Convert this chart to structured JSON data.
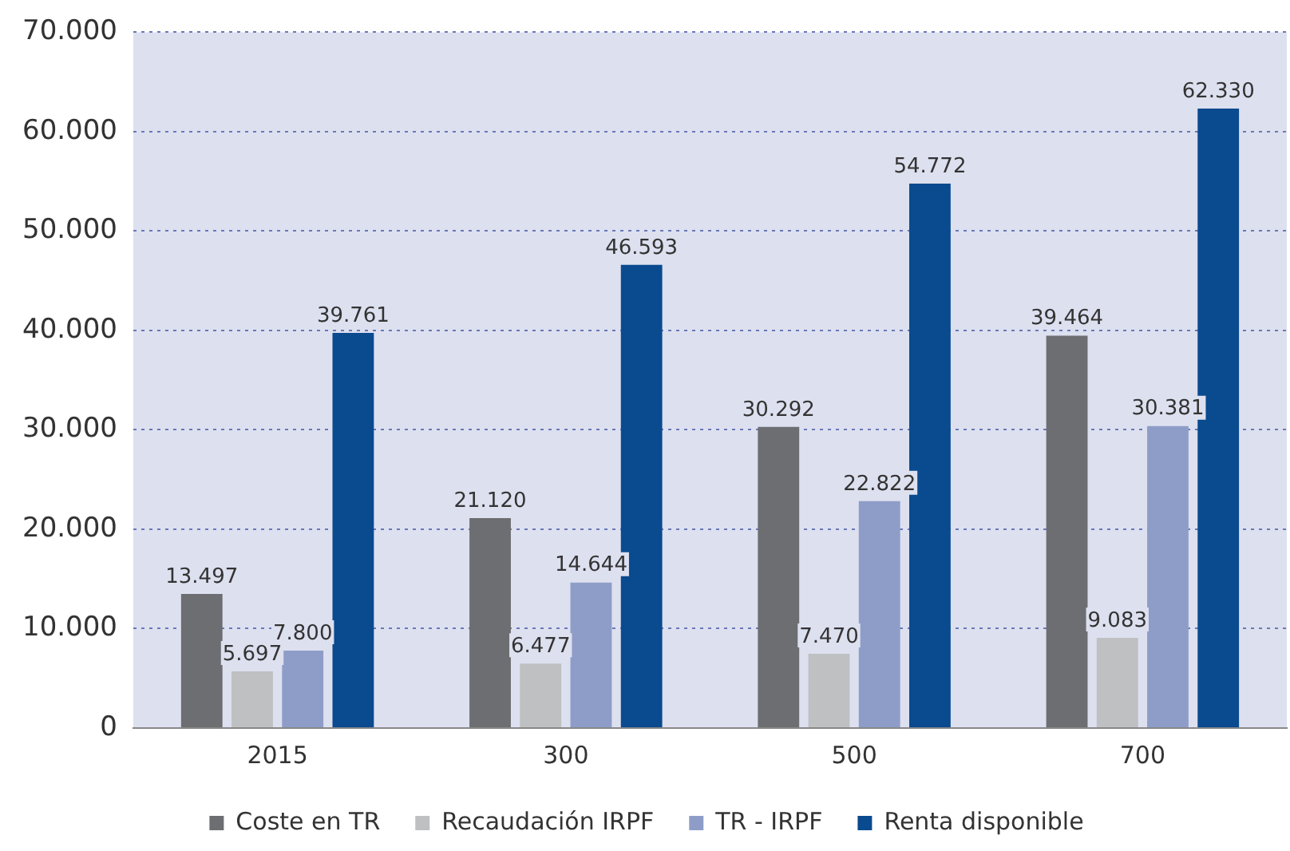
{
  "chart_data": {
    "type": "bar",
    "categories": [
      "2015",
      "300",
      "500",
      "700"
    ],
    "series": [
      {
        "name": "Coste en TR",
        "color": "#6d6e71",
        "values": [
          13497,
          21120,
          30292,
          39464
        ],
        "value_labels": [
          "13.497",
          "21.120",
          "30.292",
          "39.464"
        ]
      },
      {
        "name": "Recaudación IRPF",
        "color": "#bfc0c2",
        "values": [
          5697,
          6477,
          7470,
          9083
        ],
        "value_labels": [
          "5.697",
          "6.477",
          "7.470",
          "9.083"
        ]
      },
      {
        "name": "TR - IRPF",
        "color": "#8e9dc8",
        "values": [
          7800,
          14644,
          22822,
          30381
        ],
        "value_labels": [
          "7.800",
          "14.644",
          "22.822",
          "30.381"
        ]
      },
      {
        "name": "Renta disponible",
        "color": "#0a4a8f",
        "values": [
          39761,
          46593,
          54772,
          62330
        ],
        "value_labels": [
          "39.761",
          "46.593",
          "54.772",
          "62.330"
        ]
      }
    ],
    "ylim": [
      0,
      70000
    ],
    "yticks": [
      0,
      {
        "value": 10000,
        "label": "10.000"
      },
      {
        "value": 20000,
        "label": "20.000"
      },
      {
        "value": 30000,
        "label": "30.000"
      },
      {
        "value": 40000,
        "label": "40.000"
      },
      {
        "value": 50000,
        "label": "50.000"
      },
      {
        "value": 60000,
        "label": "60.000"
      },
      {
        "value": 70000,
        "label": "70.000"
      }
    ],
    "grid": "y",
    "legend": "bottom"
  }
}
